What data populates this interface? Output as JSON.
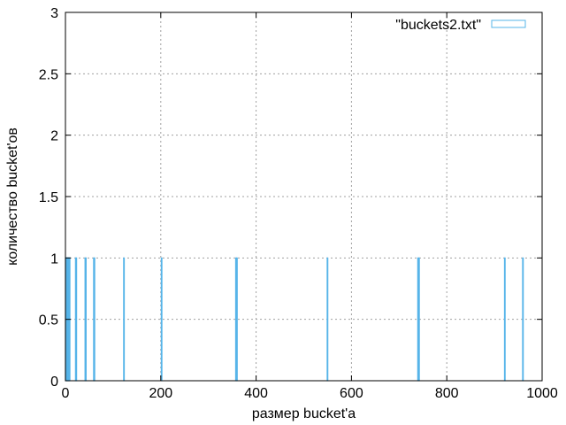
{
  "chart_data": {
    "type": "bar",
    "title": "",
    "xlabel": "размер bucket'а",
    "ylabel": "количество bucket'ов",
    "xlim": [
      0,
      1000
    ],
    "ylim": [
      0,
      3
    ],
    "xticks": [
      0,
      200,
      400,
      600,
      800,
      1000
    ],
    "yticks": [
      0,
      0.5,
      1,
      1.5,
      2,
      2.5,
      3
    ],
    "ytick_labels": [
      "0",
      "0.5",
      "1",
      "1.5",
      "2",
      "2.5",
      "3"
    ],
    "grid": true,
    "legend_position": "top-right",
    "series": [
      {
        "name": "\"buckets2.txt\"",
        "color": "#56b4e9",
        "x": [
          0,
          1,
          2,
          3,
          4,
          5,
          6,
          7,
          8,
          21,
          22,
          41,
          42,
          59,
          60,
          122,
          201,
          357,
          359,
          549,
          739,
          741,
          921,
          959
        ],
        "values": [
          1,
          1,
          1,
          1,
          1,
          1,
          1,
          1,
          1,
          1,
          1,
          1,
          1,
          1,
          1,
          1,
          1,
          1,
          1,
          1,
          1,
          1,
          1,
          1
        ]
      }
    ]
  }
}
